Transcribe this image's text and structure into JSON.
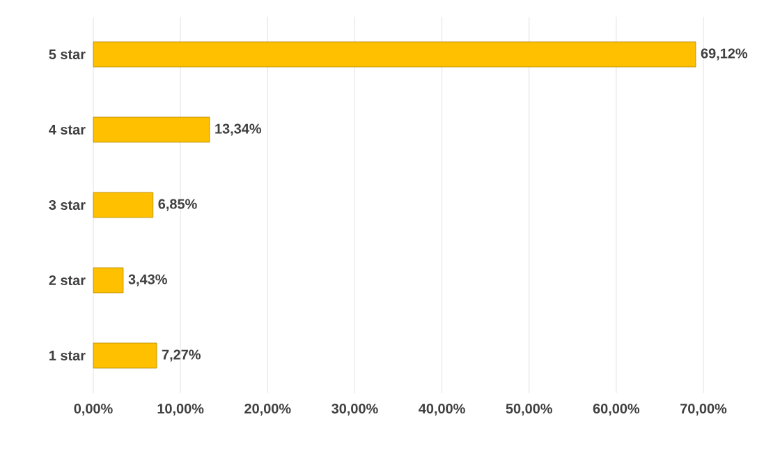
{
  "chart_data": {
    "type": "bar",
    "orientation": "horizontal",
    "categories": [
      "5 star",
      "4 star",
      "3 star",
      "2 star",
      "1 star"
    ],
    "values": [
      69.12,
      13.34,
      6.85,
      3.43,
      7.27
    ],
    "value_labels": [
      "69,12%",
      "13,34%",
      "6,85%",
      "3,43%",
      "7,27%"
    ],
    "color": "#ffc000",
    "xlim": [
      0,
      70
    ],
    "xticks": [
      {
        "value": 0,
        "label": "0,00%"
      },
      {
        "value": 10,
        "label": "10,00%"
      },
      {
        "value": 20,
        "label": "20,00%"
      },
      {
        "value": 30,
        "label": "30,00%"
      },
      {
        "value": 40,
        "label": "40,00%"
      },
      {
        "value": 50,
        "label": "50,00%"
      },
      {
        "value": 60,
        "label": "60,00%"
      },
      {
        "value": 70,
        "label": "70,00%"
      }
    ],
    "grid": "x"
  }
}
